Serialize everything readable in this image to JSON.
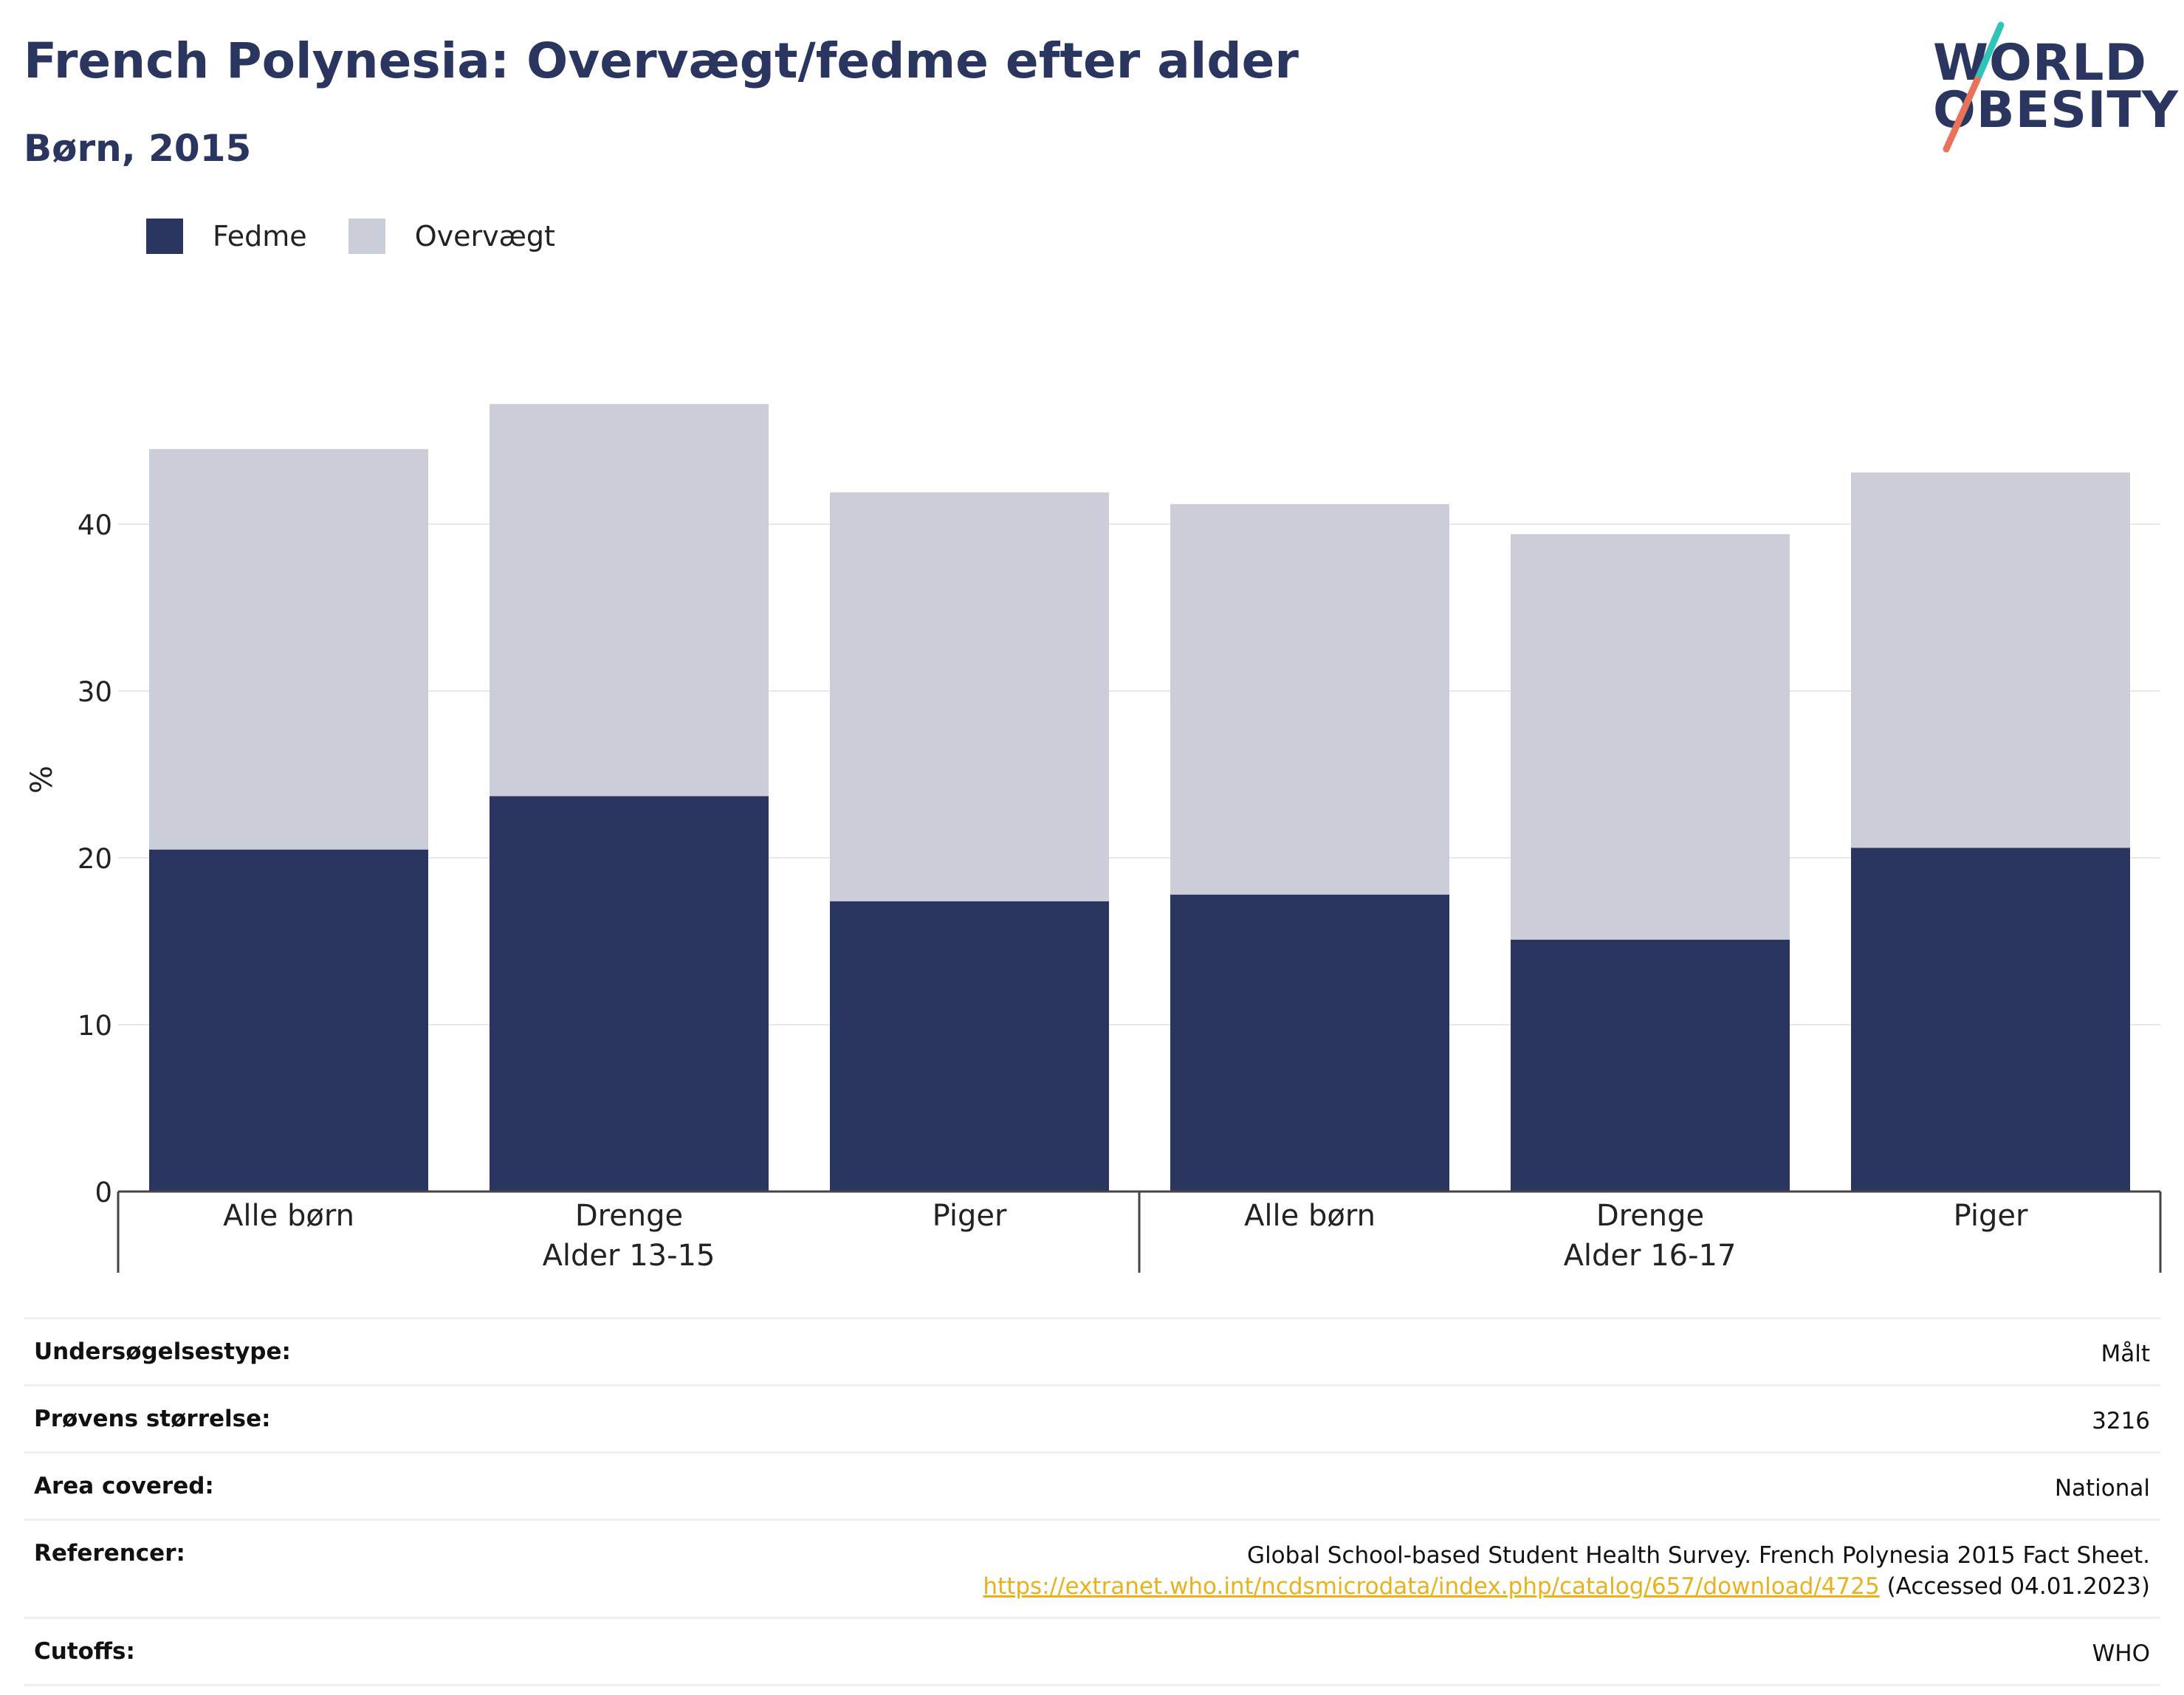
{
  "title": "French Polynesia: Overvægt/fedme efter alder",
  "subtitle": "Børn, 2015",
  "logo": {
    "line1": "WORLD",
    "line2": "OBESITY",
    "colors": {
      "text": "#2a365f",
      "slash_top": "#2ec4b6",
      "slash_bottom": "#e8735a"
    }
  },
  "legend": [
    {
      "label": "Fedme",
      "color": "#2a365f"
    },
    {
      "label": "Overvægt",
      "color": "#cbcdd8"
    }
  ],
  "chart_data": {
    "type": "bar",
    "stacked": true,
    "ylabel": "%",
    "ylim": [
      0,
      50
    ],
    "yticks": [
      0,
      10,
      20,
      30,
      40
    ],
    "grid": true,
    "groups": [
      {
        "label": "Alder 13-15",
        "categories": [
          "Alle børn",
          "Drenge",
          "Piger"
        ]
      },
      {
        "label": "Alder 16-17",
        "categories": [
          "Alle børn",
          "Drenge",
          "Piger"
        ]
      }
    ],
    "series": [
      {
        "name": "Fedme",
        "color": "#2a365f",
        "values": [
          20.5,
          23.7,
          17.4,
          17.8,
          15.1,
          20.6
        ]
      },
      {
        "name": "Overvægt",
        "color": "#cbcdd8",
        "values": [
          24.0,
          23.5,
          24.5,
          23.4,
          24.3,
          22.5
        ]
      }
    ]
  },
  "info": {
    "survey_type": {
      "label": "Undersøgelsestype:",
      "value": "Målt"
    },
    "sample_size": {
      "label": "Prøvens størrelse:",
      "value": "3216"
    },
    "area": {
      "label": "Area covered:",
      "value": "National"
    },
    "references": {
      "label": "Referencer:",
      "text": "Global School-based Student Health Survey. French Polynesia 2015 Fact Sheet.",
      "link": "https://extranet.who.int/ncdsmicrodata/index.php/catalog/657/download/4725",
      "accessed": "(Accessed 04.01.2023)"
    },
    "cutoffs": {
      "label": "Cutoffs:",
      "value": "WHO"
    }
  }
}
